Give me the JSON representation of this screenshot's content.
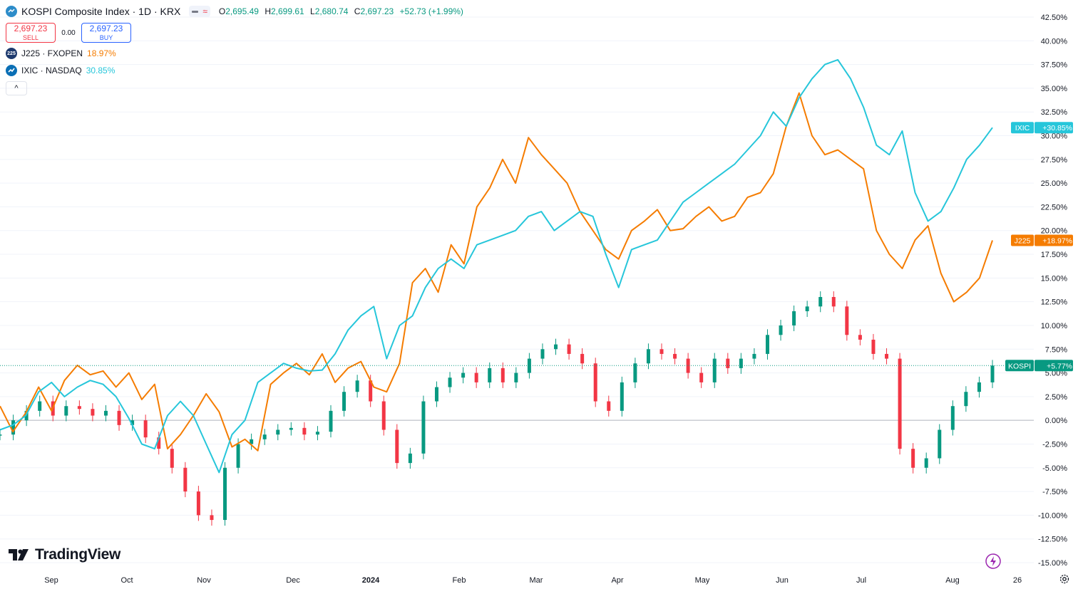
{
  "header": {
    "title": "KOSPI Composite Index · 1D · KRX",
    "ohlc": {
      "o_label": "O",
      "o": "2,695.49",
      "h_label": "H",
      "h": "2,699.61",
      "l_label": "L",
      "l": "2,680.74",
      "c_label": "C",
      "c": "2,697.23",
      "change": "+52.73 (+1.99%)"
    },
    "sell": {
      "price": "2,697.23",
      "label": "SELL"
    },
    "spread": "0.00",
    "buy": {
      "price": "2,697.23",
      "label": "BUY"
    },
    "compare": [
      {
        "icon": "225",
        "name": "J225 · FXOPEN",
        "pct": "18.97%"
      },
      {
        "icon": "",
        "name": "IXIC · NASDAQ",
        "pct": "30.85%"
      }
    ],
    "collapse_symbol": "^"
  },
  "branding": "TradingView",
  "colors": {
    "up": "#089981",
    "down": "#f23645",
    "j225": "#f57c00",
    "ixic": "#26c6da",
    "grid": "#f0f3fa"
  },
  "chart_data": {
    "type": "line",
    "title": "KOSPI Composite Index · 1D · KRX",
    "y_axis": {
      "unit": "%",
      "min": -15,
      "max": 42.5,
      "ticks": [
        "42.50%",
        "40.00%",
        "37.50%",
        "35.00%",
        "32.50%",
        "30.00%",
        "27.50%",
        "25.00%",
        "22.50%",
        "20.00%",
        "17.50%",
        "15.00%",
        "12.50%",
        "10.00%",
        "7.50%",
        "5.00%",
        "2.50%",
        "0.00%",
        "-2.50%",
        "-5.00%",
        "-7.50%",
        "-10.00%",
        "-12.50%",
        "-15.00%"
      ]
    },
    "x_axis": {
      "ticks": [
        "Sep",
        "Oct",
        "Nov",
        "Dec",
        "2024",
        "Feb",
        "Mar",
        "Apr",
        "May",
        "Jun",
        "Jul",
        "Aug",
        "26"
      ]
    },
    "series": [
      {
        "name": "J225",
        "last_label": "J225",
        "last_value": "+18.97%",
        "values": [
          1.5,
          -1.2,
          0.8,
          3.5,
          1.0,
          4.2,
          5.8,
          4.8,
          5.2,
          3.5,
          5.0,
          2.2,
          3.8,
          -3.0,
          -1.5,
          0.5,
          2.8,
          0.9,
          -2.8,
          -2.0,
          -3.2,
          3.8,
          5.0,
          6.0,
          4.8,
          7.0,
          4.0,
          5.5,
          6.2,
          3.5,
          3.0,
          6.0,
          14.5,
          16.0,
          13.5,
          18.5,
          16.5,
          22.5,
          24.5,
          27.5,
          25.0,
          29.8,
          28.0,
          26.5,
          25.0,
          22.0,
          20.0,
          18.0,
          17.0,
          20.0,
          21.0,
          22.2,
          20.0,
          20.2,
          21.5,
          22.5,
          21.0,
          21.5,
          23.5,
          24.0,
          26.0,
          31.0,
          34.5,
          30.0,
          28.0,
          28.5,
          27.5,
          26.5,
          20.0,
          17.5,
          16.0,
          19.0,
          20.5,
          15.5,
          12.5,
          13.5,
          15.0,
          18.97
        ]
      },
      {
        "name": "IXIC",
        "last_label": "IXIC",
        "last_value": "+30.85%",
        "values": [
          -1.0,
          -0.5,
          0.5,
          3.0,
          4.0,
          2.5,
          3.5,
          4.2,
          3.8,
          2.5,
          0.2,
          -2.5,
          -3.0,
          0.5,
          2.0,
          0.5,
          -2.5,
          -5.5,
          -1.5,
          0.0,
          4.0,
          5.0,
          6.0,
          5.5,
          5.2,
          5.3,
          7.0,
          9.5,
          11.0,
          12.0,
          6.5,
          10.0,
          11.0,
          14.0,
          16.0,
          17.0,
          16.0,
          18.5,
          19.0,
          19.5,
          20.0,
          21.5,
          22.0,
          20.0,
          21.0,
          22.0,
          21.5,
          17.5,
          14.0,
          18.0,
          18.5,
          19.0,
          21.0,
          23.0,
          24.0,
          25.0,
          26.0,
          27.0,
          28.5,
          30.0,
          32.5,
          31.0,
          34.0,
          36.0,
          37.5,
          38.0,
          36.0,
          33.0,
          29.0,
          28.0,
          30.5,
          24.0,
          21.0,
          22.0,
          24.5,
          27.5,
          29.0,
          30.85
        ]
      },
      {
        "name": "KOSPI",
        "last_label": "KOSPI",
        "last_value": "+5.77%",
        "values": [
          -1.5,
          0.0,
          1.0,
          2.0,
          0.5,
          1.5,
          1.2,
          0.5,
          1.0,
          -0.5,
          0.0,
          -1.8,
          -3.0,
          -5.0,
          -7.5,
          -10.0,
          -10.5,
          -5.0,
          -2.5,
          -2.0,
          -1.5,
          -1.0,
          -0.8,
          -1.5,
          -1.2,
          1.0,
          3.0,
          4.2,
          2.0,
          -1.0,
          -4.5,
          -3.5,
          2.0,
          3.5,
          4.5,
          5.0,
          4.0,
          5.5,
          4.0,
          5.0,
          6.5,
          7.5,
          8.0,
          7.0,
          6.0,
          2.0,
          1.0,
          4.0,
          6.0,
          7.5,
          7.0,
          6.5,
          5.0,
          4.0,
          6.5,
          5.5,
          6.5,
          7.0,
          9.0,
          10.0,
          11.5,
          12.0,
          13.0,
          12.0,
          9.0,
          8.5,
          7.0,
          6.5,
          -3.0,
          -5.0,
          -4.0,
          -1.0,
          1.5,
          3.0,
          4.0,
          5.77
        ]
      }
    ],
    "zero_line": 0,
    "last_price_line": 5.77
  }
}
